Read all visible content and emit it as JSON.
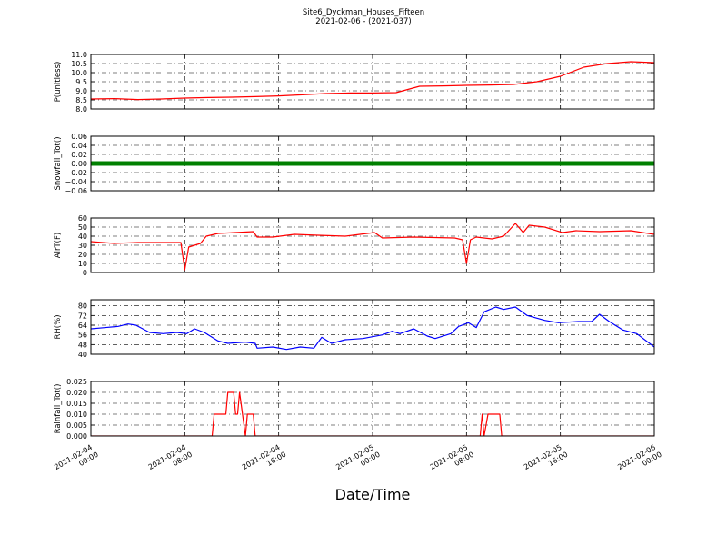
{
  "figure": {
    "title": "Site6_Dyckman_Houses_Fifteen",
    "subtitle": "2021-02-06 - (2021-037)",
    "xlabel": "Date/Time",
    "xlim": [
      "2021-02-04 00:00",
      "2021-02-06 00:00"
    ],
    "xticks": [
      "2021-02-04 00:00",
      "2021-02-04 08:00",
      "2021-02-04 16:00",
      "2021-02-05 00:00",
      "2021-02-05 08:00",
      "2021-02-05 16:00",
      "2021-02-06 00:00"
    ]
  },
  "chart_data": [
    {
      "type": "line",
      "ylabel": "P(unitless)",
      "color": "#ff0000",
      "grid": true,
      "ylim": [
        8.0,
        11.0
      ],
      "yticks": [
        {
          "value": 8.0,
          "label": "8.0"
        },
        8.5,
        {
          "value": 9.0,
          "label": "9.0"
        },
        9.5,
        {
          "value": 10.0,
          "label": "10.0"
        },
        10.5,
        {
          "value": 11.0,
          "label": "11.0"
        }
      ],
      "x": [
        "2021-02-04 00:00",
        "2021-02-04 02:00",
        "2021-02-04 04:00",
        "2021-02-04 06:00",
        "2021-02-04 08:00",
        "2021-02-04 10:00",
        "2021-02-04 12:00",
        "2021-02-04 14:00",
        "2021-02-04 16:00",
        "2021-02-04 18:00",
        "2021-02-04 20:00",
        "2021-02-04 22:00",
        "2021-02-05 00:00",
        "2021-02-05 02:00",
        "2021-02-05 04:00",
        "2021-02-05 06:00",
        "2021-02-05 08:00",
        "2021-02-05 10:00",
        "2021-02-05 12:00",
        "2021-02-05 14:00",
        "2021-02-05 16:00",
        "2021-02-05 18:00",
        "2021-02-05 20:00",
        "2021-02-05 22:00",
        "2021-02-06 00:00"
      ],
      "values": [
        8.55,
        8.57,
        8.52,
        8.55,
        8.6,
        8.63,
        8.65,
        8.68,
        8.72,
        8.78,
        8.85,
        8.88,
        8.88,
        8.9,
        9.25,
        9.27,
        9.3,
        9.32,
        9.35,
        9.5,
        9.8,
        10.3,
        10.5,
        10.6,
        10.55
      ]
    },
    {
      "type": "line",
      "ylabel": "Snowfall_Tot()",
      "color": "#008000",
      "grid": true,
      "line_width": 5,
      "ylim": [
        -0.06,
        0.06
      ],
      "yticks": [
        {
          "value": -0.06,
          "label": "−0.06"
        },
        {
          "value": -0.04,
          "label": "−0.04"
        },
        {
          "value": -0.02,
          "label": "−0.02"
        },
        {
          "value": 0,
          "label": "0.00"
        },
        0.02,
        0.04,
        0.06
      ],
      "x": [
        "2021-02-04 00:00",
        "2021-02-04 04:00",
        "2021-02-04 08:00",
        "2021-02-04 12:00",
        "2021-02-04 16:00",
        "2021-02-04 20:00",
        "2021-02-05 00:00",
        "2021-02-05 04:00",
        "2021-02-05 08:00",
        "2021-02-05 12:00",
        "2021-02-05 16:00",
        "2021-02-05 20:00",
        "2021-02-06 00:00"
      ],
      "values": [
        0,
        0,
        0,
        0,
        0,
        0,
        0,
        0,
        0,
        0,
        0,
        0,
        0
      ]
    },
    {
      "type": "line",
      "ylabel": "AirT(F)",
      "color": "#ff0000",
      "grid": true,
      "ylim": [
        0,
        60
      ],
      "yticks": [
        0,
        10,
        20,
        30,
        40,
        50,
        60
      ],
      "x": [
        "2021-02-04 00:00",
        "2021-02-04 02:00",
        "2021-02-04 04:00",
        "2021-02-04 06:00",
        "2021-02-04 07:40",
        "2021-02-04 08:00",
        "2021-02-04 08:20",
        "2021-02-04 09:20",
        "2021-02-04 09:50",
        "2021-02-04 10:50",
        "2021-02-04 13:50",
        "2021-02-04 14:10",
        "2021-02-04 15:30",
        "2021-02-04 17:20",
        "2021-02-04 19:20",
        "2021-02-04 21:40",
        "2021-02-05 00:10",
        "2021-02-05 00:50",
        "2021-02-05 03:30",
        "2021-02-05 07:00",
        "2021-02-05 07:40",
        "2021-02-05 08:00",
        "2021-02-05 08:20",
        "2021-02-05 08:50",
        "2021-02-05 10:10",
        "2021-02-05 11:10",
        "2021-02-05 12:10",
        "2021-02-05 12:50",
        "2021-02-05 13:20",
        "2021-02-05 14:40",
        "2021-02-05 16:10",
        "2021-02-05 17:20",
        "2021-02-05 19:20",
        "2021-02-05 22:00",
        "2021-02-06 00:00"
      ],
      "values": [
        34,
        32,
        33,
        33,
        33,
        3,
        28,
        32,
        40,
        43,
        45,
        39,
        39,
        42,
        41,
        40,
        44,
        38,
        39,
        38,
        36,
        10,
        36,
        39,
        37,
        40,
        54,
        44,
        52,
        50,
        44,
        46,
        45,
        46,
        42
      ]
    },
    {
      "type": "line",
      "ylabel": "RH(%)",
      "color": "#0000ff",
      "grid": true,
      "ylim": [
        40,
        85
      ],
      "yticks": [
        40,
        48,
        56,
        64,
        72,
        80
      ],
      "x": [
        "2021-02-04 00:00",
        "2021-02-04 01:10",
        "2021-02-04 02:20",
        "2021-02-04 03:10",
        "2021-02-04 03:50",
        "2021-02-04 05:00",
        "2021-02-04 06:10",
        "2021-02-04 07:20",
        "2021-02-04 08:10",
        "2021-02-04 08:50",
        "2021-02-04 09:40",
        "2021-02-04 10:50",
        "2021-02-04 11:40",
        "2021-02-04 13:10",
        "2021-02-04 14:00",
        "2021-02-04 14:10",
        "2021-02-04 15:30",
        "2021-02-04 16:40",
        "2021-02-04 17:50",
        "2021-02-04 19:00",
        "2021-02-04 19:40",
        "2021-02-04 20:30",
        "2021-02-04 21:40",
        "2021-02-04 23:10",
        "2021-02-05 00:50",
        "2021-02-05 01:40",
        "2021-02-05 02:20",
        "2021-02-05 03:30",
        "2021-02-05 04:40",
        "2021-02-05 05:20",
        "2021-02-05 06:40",
        "2021-02-05 07:20",
        "2021-02-05 08:10",
        "2021-02-05 08:50",
        "2021-02-05 09:30",
        "2021-02-05 10:30",
        "2021-02-05 11:10",
        "2021-02-05 12:10",
        "2021-02-05 13:10",
        "2021-02-05 14:40",
        "2021-02-05 15:50",
        "2021-02-05 17:30",
        "2021-02-05 18:40",
        "2021-02-05 19:20",
        "2021-02-05 20:10",
        "2021-02-05 21:20",
        "2021-02-05 22:30",
        "2021-02-06 00:00"
      ],
      "values": [
        61,
        62,
        63,
        65,
        64,
        58,
        57,
        58,
        57,
        61,
        58,
        51,
        49,
        50,
        49,
        45,
        46,
        44,
        46,
        45,
        54,
        49,
        52,
        53,
        56,
        59,
        57,
        61,
        55,
        53,
        57,
        63,
        66,
        62,
        75,
        79,
        77,
        79,
        72,
        68,
        66,
        67,
        67,
        73,
        67,
        60,
        57,
        46
      ]
    },
    {
      "type": "line",
      "ylabel": "Rainfall_Tot()",
      "color": "#ff0000",
      "grid": true,
      "ylim": [
        0,
        0.025
      ],
      "yticks": [
        {
          "value": 0,
          "label": "0.000"
        },
        0.005,
        {
          "value": 0.01,
          "label": "0.010"
        },
        0.015,
        {
          "value": 0.02,
          "label": "0.020"
        },
        0.025
      ],
      "x": [
        "2021-02-04 00:00",
        "2021-02-04 10:20",
        "2021-02-04 10:30",
        "2021-02-04 11:30",
        "2021-02-04 11:40",
        "2021-02-04 12:10",
        "2021-02-04 12:20",
        "2021-02-04 12:30",
        "2021-02-04 12:40",
        "2021-02-04 13:10",
        "2021-02-04 13:20",
        "2021-02-04 13:50",
        "2021-02-04 14:00",
        "2021-02-05 09:10",
        "2021-02-05 09:20",
        "2021-02-05 09:30",
        "2021-02-05 09:50",
        "2021-02-05 10:50",
        "2021-02-05 11:00",
        "2021-02-06 00:00"
      ],
      "values": [
        0,
        0,
        0.01,
        0.01,
        0.02,
        0.02,
        0.01,
        0.01,
        0.02,
        0,
        0.01,
        0.01,
        0,
        0,
        0.01,
        0,
        0.01,
        0.01,
        0,
        0
      ]
    }
  ]
}
